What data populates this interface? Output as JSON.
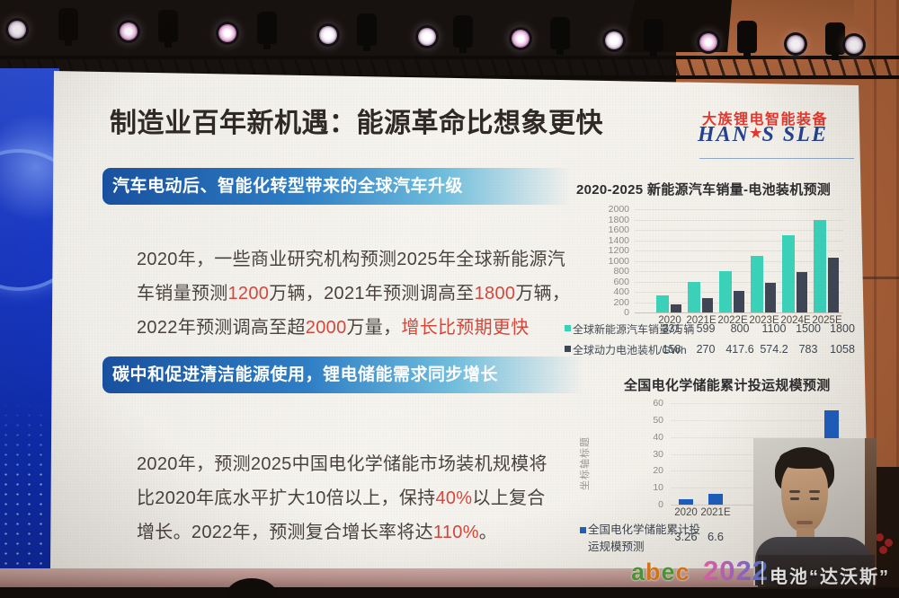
{
  "slide": {
    "title": "制造业百年新机遇：能源革命比想象更快",
    "vendor_logo": {
      "name_cn": "大族锂电智能装备",
      "name_en_prefix": "HAN",
      "star": "★",
      "name_en_suffix": "S SLE"
    },
    "section1": {
      "banner": "汽车电动后、智能化转型带来的全球汽车升级",
      "lines": [
        [
          {
            "t": "2020年，一些商业研究机构预测2025年全球新能源汽"
          }
        ],
        [
          {
            "t": "车销量预测"
          },
          {
            "t": "1200",
            "red": true
          },
          {
            "t": "万辆，2021年预测调高至"
          },
          {
            "t": "1800",
            "red": true
          },
          {
            "t": "万辆，"
          }
        ],
        [
          {
            "t": "2022年预测调高至超"
          },
          {
            "t": "2000",
            "red": true
          },
          {
            "t": "万量，"
          },
          {
            "t": "增长比预期更快",
            "red": true
          }
        ]
      ]
    },
    "section2": {
      "banner": "碳中和促进清洁能源使用，锂电储能需求同步增长",
      "lines": [
        [
          {
            "t": "2020年，预测2025中国电化学储能市场装机规模将"
          }
        ],
        [
          {
            "t": "比2020年底水平扩大10倍以上，保持"
          },
          {
            "t": "40%",
            "red": true
          },
          {
            "t": "以上复合"
          }
        ],
        [
          {
            "t": "增长。2022年，预测复合增长率将达"
          },
          {
            "t": "110%",
            "red": true
          },
          {
            "t": "。"
          }
        ]
      ]
    }
  },
  "chart_data": [
    {
      "type": "bar",
      "title": "2020-2025 新能源汽车销量-电池装机预测",
      "categories": [
        "2020",
        "2021E",
        "2022E",
        "2023E",
        "2024E",
        "2025E"
      ],
      "series": [
        {
          "name": "全球新能源汽车销量/万辆",
          "color": "#3bd2ba",
          "values": [
            331,
            599,
            800,
            1100,
            1500,
            1800
          ]
        },
        {
          "name": "全球动力电池装机/GWh",
          "color": "#3e4554",
          "values": [
            158,
            270,
            417.6,
            574.2,
            783,
            1058
          ]
        }
      ],
      "ylim": [
        0,
        2000
      ],
      "ytick_step": 200,
      "grid": true,
      "legend_position": "table-below"
    },
    {
      "type": "bar",
      "title": "全国电化学储能累计投运规模预测",
      "y_axis_title": "坐标轴标题",
      "categories": [
        "2020",
        "2021E"
      ],
      "series": [
        {
          "name": "全国电化学储能累计投运规模预测",
          "color": "#1d5fc4",
          "values": [
            3.26,
            6.6
          ]
        }
      ],
      "ylim": [
        0,
        60
      ],
      "ytick_step": 10,
      "grid": true,
      "occluded_bar": {
        "approx_value": 56,
        "note": "rightmost bar partly hidden behind speaker video overlay; its label is not visible"
      }
    }
  ],
  "watermark": {
    "brand": "abec",
    "brand_letter_colors": [
      "#4f9e38",
      "#e07d1e",
      "#4f9e38",
      "#e07d1e"
    ],
    "year": "2022",
    "slogan": "电池“达沃斯”"
  },
  "colors": {
    "accent_red": "#d8453a",
    "banner_blue_dark": "#17509f",
    "banner_blue_light": "#6fbede",
    "series_teal": "#3bd2ba",
    "series_dark": "#3e4554",
    "series_blue": "#1d5fc4",
    "logo_red": "#e2372e",
    "logo_navy": "#24418f"
  }
}
